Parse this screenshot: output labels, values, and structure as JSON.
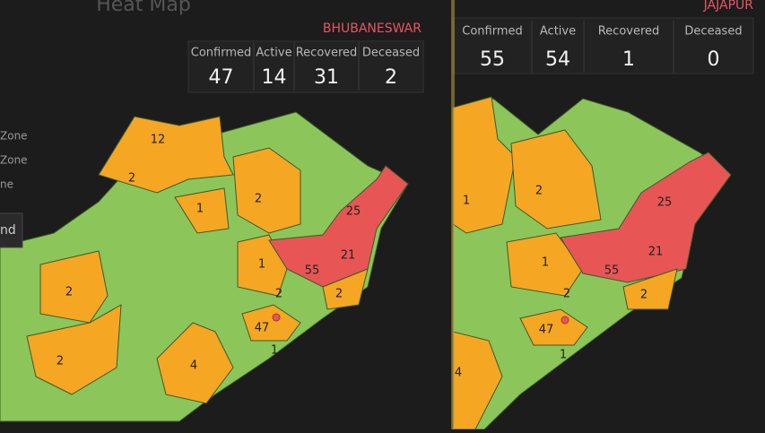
{
  "left_panel": {
    "title": "Heat Map",
    "district": "BHUBANESWAR",
    "stats": [
      {
        "label": "Confirmed",
        "value": 47
      },
      {
        "label": "Active",
        "value": 14
      },
      {
        "label": "Recovered",
        "value": 31
      },
      {
        "label": "Deceased",
        "value": 2
      }
    ],
    "legend": [
      "Zone",
      "Zone",
      "ne"
    ],
    "button": "nd",
    "map_labels": [
      12,
      2,
      1,
      2,
      2,
      1,
      55,
      21,
      25,
      2,
      2,
      47,
      1,
      2,
      4
    ]
  },
  "right_panel": {
    "district": "JAJAPUR",
    "stats": [
      {
        "label": "Confirmed",
        "value": 55
      },
      {
        "label": "Active",
        "value": 54
      },
      {
        "label": "Recovered",
        "value": 1
      },
      {
        "label": "Deceased",
        "value": 0
      }
    ],
    "map_labels": [
      1,
      2,
      25,
      1,
      55,
      21,
      2,
      2,
      47,
      1,
      4
    ]
  }
}
